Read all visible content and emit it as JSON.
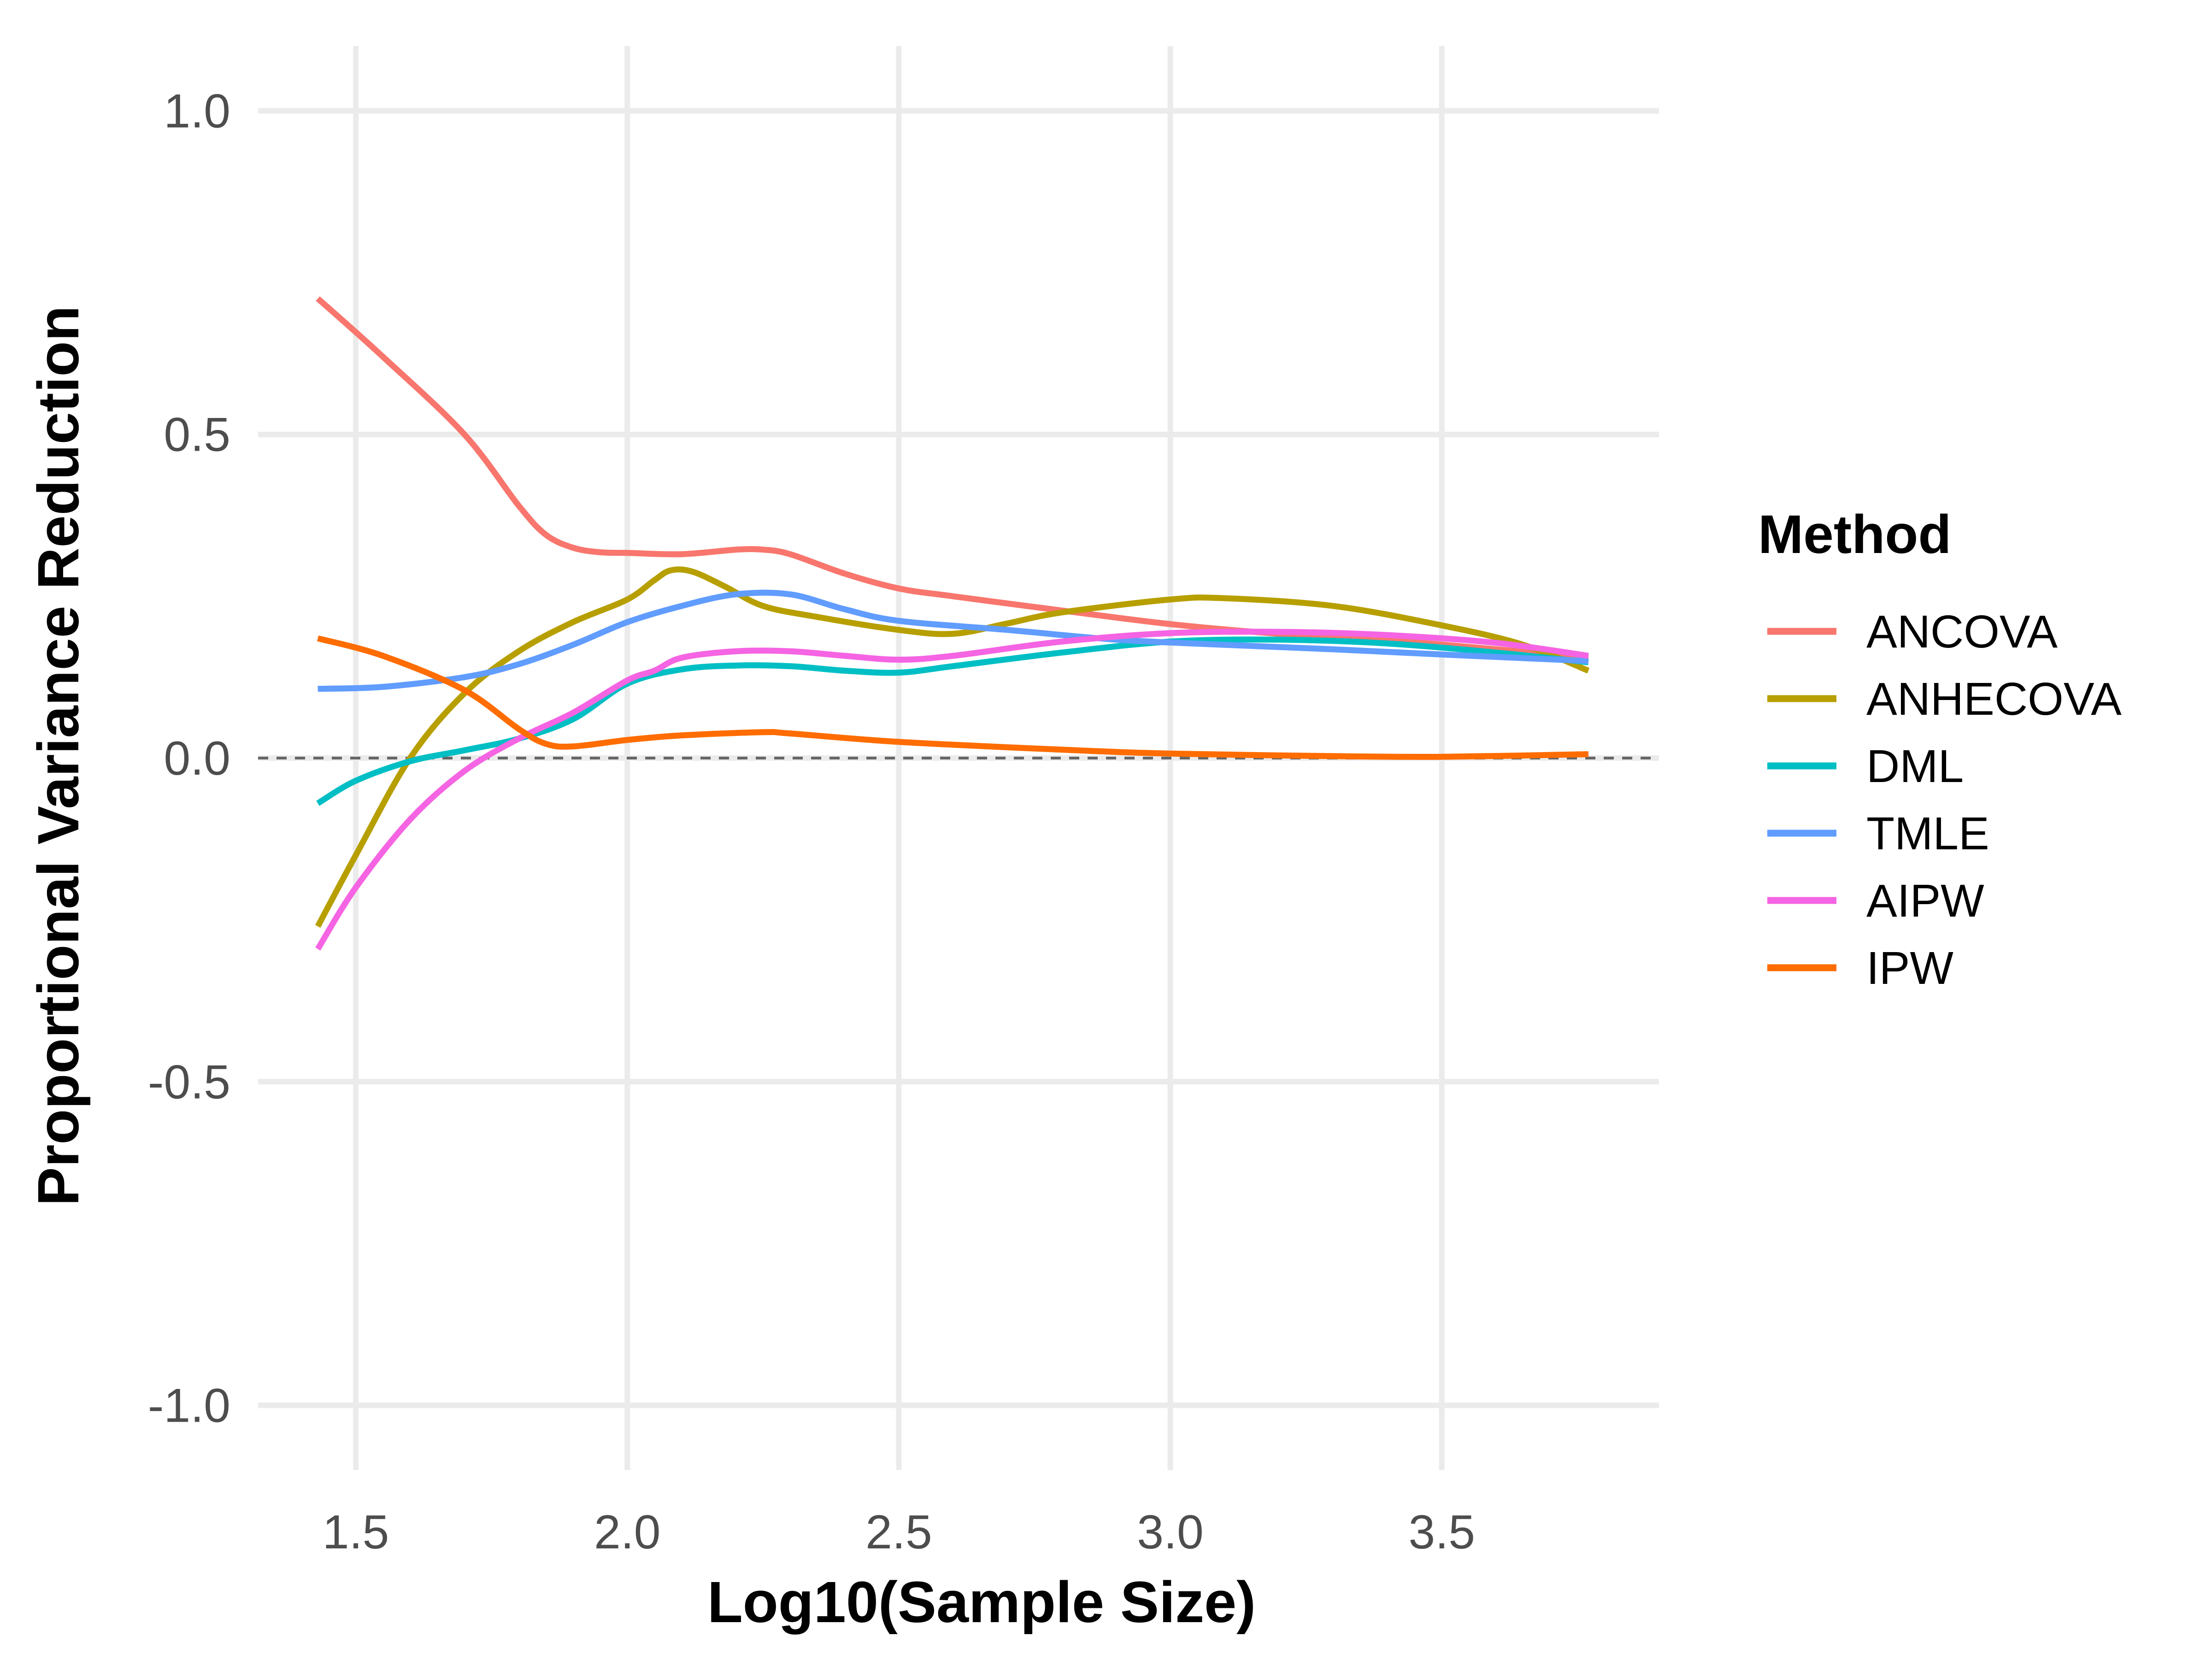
{
  "chart_data": {
    "type": "line",
    "xlabel": "Log10(Sample Size)",
    "ylabel": "Proportional Variance Reduction",
    "xlim": [
      1.32,
      3.9
    ],
    "ylim": [
      -1.1,
      1.1
    ],
    "x_ticks": [
      1.5,
      2.0,
      2.5,
      3.0,
      3.5
    ],
    "x_tick_labels": [
      "1.5",
      "2.0",
      "2.5",
      "3.0",
      "3.5"
    ],
    "y_ticks": [
      1.0,
      0.5,
      0.0,
      -0.5,
      -1.0
    ],
    "y_tick_labels": [
      "1.0",
      "0.5",
      "0.0",
      "-0.5",
      "-1.0"
    ],
    "grid": true,
    "reference_line": {
      "y": 0.0,
      "style": "dashed",
      "color": "#666666"
    },
    "legend": {
      "title": "Method",
      "position": "right"
    },
    "series": [
      {
        "name": "ANCOVA",
        "color": "#F8766D",
        "points": [
          [
            1.43,
            0.71
          ],
          [
            1.55,
            0.62
          ],
          [
            1.7,
            0.5
          ],
          [
            1.8,
            0.39
          ],
          [
            1.85,
            0.345
          ],
          [
            1.9,
            0.325
          ],
          [
            1.95,
            0.318
          ],
          [
            2.0,
            0.317
          ],
          [
            2.1,
            0.315
          ],
          [
            2.2,
            0.322
          ],
          [
            2.25,
            0.322
          ],
          [
            2.3,
            0.315
          ],
          [
            2.4,
            0.285
          ],
          [
            2.5,
            0.262
          ],
          [
            2.6,
            0.25
          ],
          [
            2.8,
            0.228
          ],
          [
            3.0,
            0.207
          ],
          [
            3.2,
            0.192
          ],
          [
            3.4,
            0.182
          ],
          [
            3.6,
            0.168
          ],
          [
            3.77,
            0.155
          ]
        ]
      },
      {
        "name": "ANHECOVA",
        "color": "#B79F00",
        "points": [
          [
            1.43,
            -0.26
          ],
          [
            1.5,
            -0.15
          ],
          [
            1.6,
            0.0
          ],
          [
            1.7,
            0.1
          ],
          [
            1.8,
            0.165
          ],
          [
            1.9,
            0.21
          ],
          [
            2.0,
            0.245
          ],
          [
            2.05,
            0.275
          ],
          [
            2.08,
            0.29
          ],
          [
            2.12,
            0.288
          ],
          [
            2.18,
            0.265
          ],
          [
            2.25,
            0.235
          ],
          [
            2.35,
            0.218
          ],
          [
            2.5,
            0.198
          ],
          [
            2.6,
            0.192
          ],
          [
            2.7,
            0.208
          ],
          [
            2.8,
            0.225
          ],
          [
            3.0,
            0.245
          ],
          [
            3.1,
            0.247
          ],
          [
            3.3,
            0.235
          ],
          [
            3.5,
            0.205
          ],
          [
            3.65,
            0.175
          ],
          [
            3.77,
            0.135
          ]
        ]
      },
      {
        "name": "DML",
        "color": "#00BFC4",
        "points": [
          [
            1.43,
            -0.07
          ],
          [
            1.5,
            -0.035
          ],
          [
            1.6,
            -0.005
          ],
          [
            1.7,
            0.012
          ],
          [
            1.8,
            0.03
          ],
          [
            1.9,
            0.06
          ],
          [
            2.0,
            0.115
          ],
          [
            2.1,
            0.137
          ],
          [
            2.2,
            0.143
          ],
          [
            2.3,
            0.142
          ],
          [
            2.4,
            0.135
          ],
          [
            2.5,
            0.132
          ],
          [
            2.6,
            0.142
          ],
          [
            2.8,
            0.163
          ],
          [
            3.0,
            0.18
          ],
          [
            3.2,
            0.183
          ],
          [
            3.4,
            0.177
          ],
          [
            3.6,
            0.163
          ],
          [
            3.77,
            0.148
          ]
        ]
      },
      {
        "name": "TMLE",
        "color": "#619CFF",
        "points": [
          [
            1.43,
            0.107
          ],
          [
            1.55,
            0.11
          ],
          [
            1.7,
            0.125
          ],
          [
            1.8,
            0.145
          ],
          [
            1.9,
            0.175
          ],
          [
            2.0,
            0.21
          ],
          [
            2.1,
            0.235
          ],
          [
            2.2,
            0.253
          ],
          [
            2.3,
            0.253
          ],
          [
            2.4,
            0.23
          ],
          [
            2.5,
            0.212
          ],
          [
            2.7,
            0.198
          ],
          [
            2.9,
            0.183
          ],
          [
            3.1,
            0.175
          ],
          [
            3.3,
            0.168
          ],
          [
            3.5,
            0.16
          ],
          [
            3.77,
            0.15
          ]
        ]
      },
      {
        "name": "AIPW",
        "color": "#F564E3",
        "points": [
          [
            1.43,
            -0.295
          ],
          [
            1.5,
            -0.2
          ],
          [
            1.6,
            -0.095
          ],
          [
            1.7,
            -0.02
          ],
          [
            1.8,
            0.03
          ],
          [
            1.9,
            0.07
          ],
          [
            2.0,
            0.12
          ],
          [
            2.05,
            0.135
          ],
          [
            2.1,
            0.155
          ],
          [
            2.2,
            0.165
          ],
          [
            2.3,
            0.165
          ],
          [
            2.4,
            0.158
          ],
          [
            2.5,
            0.152
          ],
          [
            2.6,
            0.158
          ],
          [
            2.8,
            0.18
          ],
          [
            3.0,
            0.193
          ],
          [
            3.2,
            0.195
          ],
          [
            3.4,
            0.19
          ],
          [
            3.6,
            0.178
          ],
          [
            3.77,
            0.158
          ]
        ]
      },
      {
        "name": "IPW",
        "color": "#FF6C00",
        "points": [
          [
            1.43,
            0.185
          ],
          [
            1.55,
            0.158
          ],
          [
            1.7,
            0.105
          ],
          [
            1.8,
            0.045
          ],
          [
            1.85,
            0.022
          ],
          [
            1.9,
            0.018
          ],
          [
            2.0,
            0.028
          ],
          [
            2.1,
            0.035
          ],
          [
            2.25,
            0.04
          ],
          [
            2.3,
            0.038
          ],
          [
            2.5,
            0.025
          ],
          [
            2.8,
            0.013
          ],
          [
            3.0,
            0.007
          ],
          [
            3.3,
            0.003
          ],
          [
            3.5,
            0.002
          ],
          [
            3.77,
            0.006
          ]
        ]
      }
    ]
  }
}
